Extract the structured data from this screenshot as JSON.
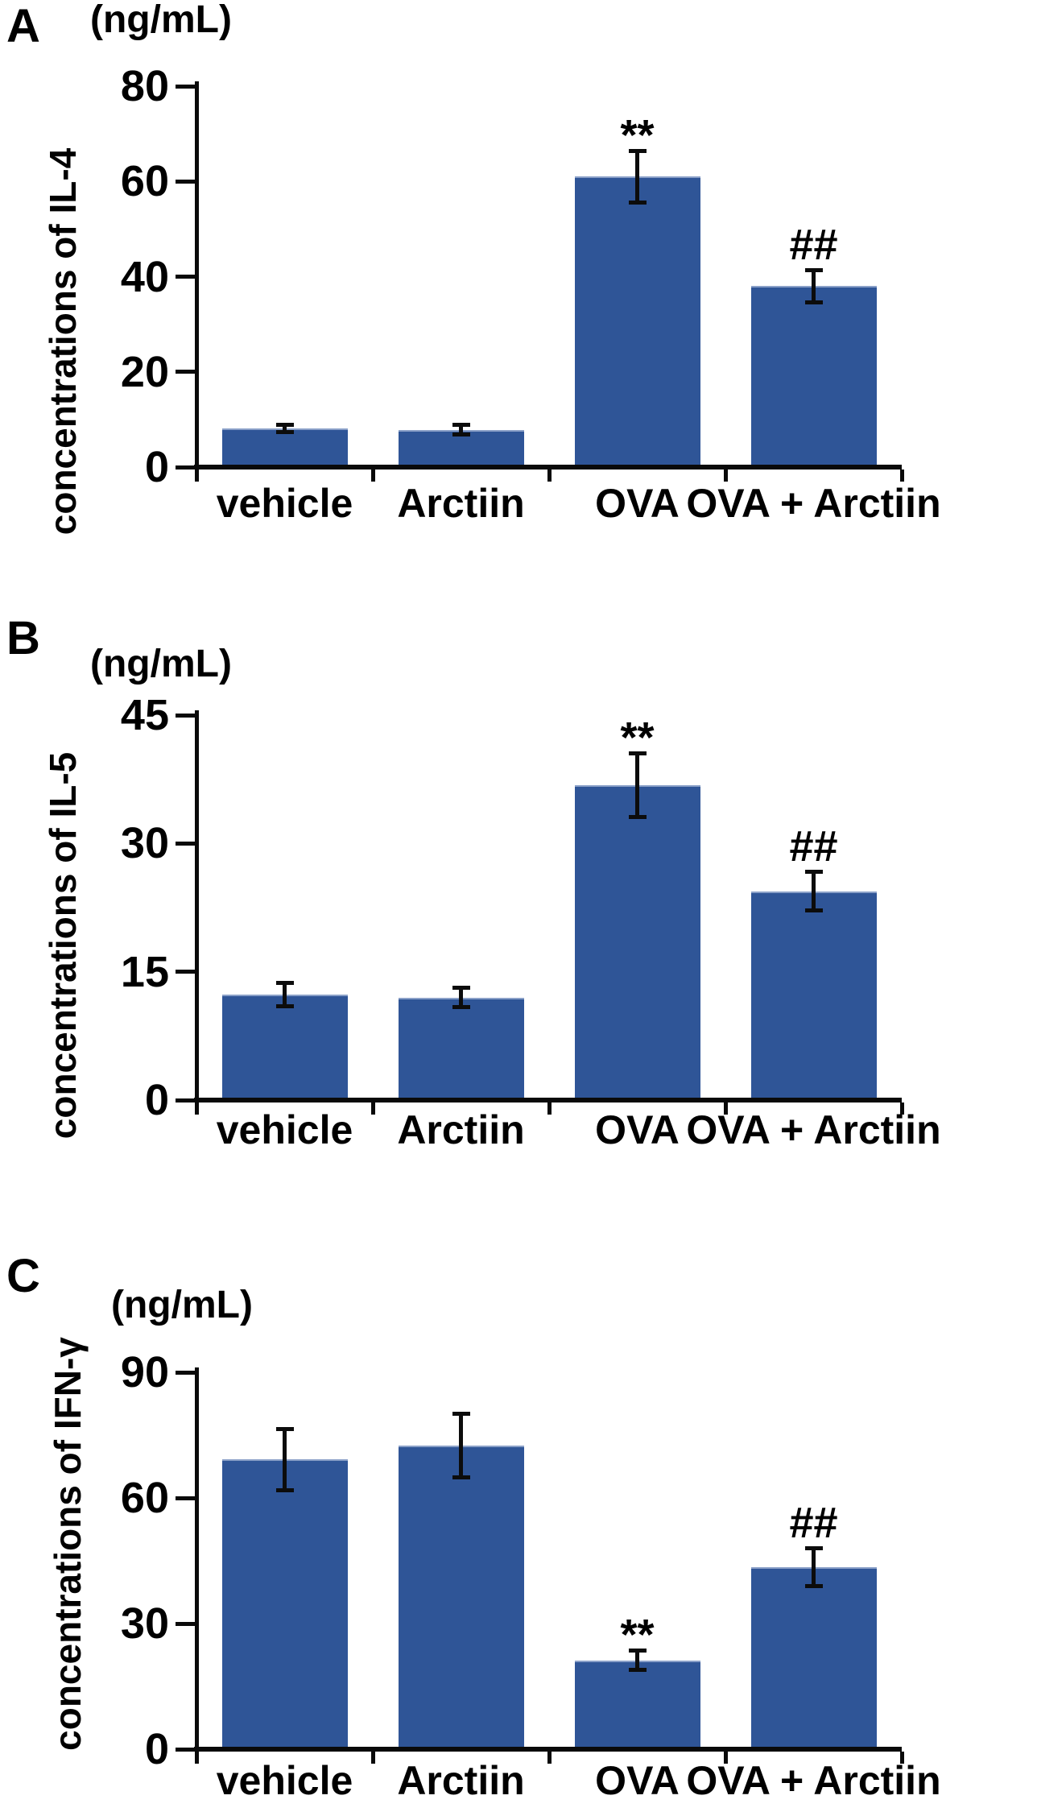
{
  "chart_data": [
    {
      "type": "bar",
      "panel": "A",
      "title": "(ng/mL)",
      "ylabel": "concentrations of IL-4",
      "xlabel": "",
      "categories": [
        "vehicle",
        "Arctiin",
        "OVA",
        "OVA + Arctiin"
      ],
      "values": [
        8.1,
        7.8,
        61,
        38
      ],
      "errors": [
        0.9,
        1.1,
        5.5,
        3.5
      ],
      "annotations": [
        "",
        "",
        "**",
        "##"
      ],
      "yticks": [
        0,
        20,
        40,
        60,
        80
      ],
      "ylim": [
        0,
        80
      ],
      "bar_color": "#2f5597",
      "error_color": "#0c0c0c",
      "axis_color": "#0a0a0a",
      "grid": false,
      "legend": "none"
    },
    {
      "type": "bar",
      "panel": "B",
      "title": "(ng/mL)",
      "ylabel": "concentrations of IL-5",
      "xlabel": "",
      "categories": [
        "vehicle",
        "Arctiin",
        "OVA",
        "OVA + Arctiin"
      ],
      "values": [
        12.3,
        12.0,
        36.8,
        24.4
      ],
      "errors": [
        1.4,
        1.2,
        3.8,
        2.3
      ],
      "annotations": [
        "",
        "",
        "**",
        "##"
      ],
      "yticks": [
        0,
        15,
        30,
        45
      ],
      "ylim": [
        0,
        45
      ],
      "bar_color": "#2f5597",
      "error_color": "#0c0c0c",
      "axis_color": "#0a0a0a",
      "grid": false,
      "legend": "none"
    },
    {
      "type": "bar",
      "panel": "C",
      "title": "(ng/mL)",
      "ylabel": "concentrations of IFN-γ",
      "xlabel": "",
      "categories": [
        "vehicle",
        "Arctiin",
        "OVA",
        "OVA + Arctiin"
      ],
      "values": [
        69.2,
        72.5,
        21.2,
        43.5
      ],
      "errors": [
        7.4,
        7.6,
        2.4,
        4.6
      ],
      "annotations": [
        "",
        "",
        "**",
        "##"
      ],
      "yticks": [
        0,
        30,
        60,
        90
      ],
      "ylim": [
        0,
        90
      ],
      "bar_color": "#2f5597",
      "error_color": "#0c0c0c",
      "axis_color": "#0a0a0a",
      "grid": false,
      "legend": "none"
    }
  ]
}
